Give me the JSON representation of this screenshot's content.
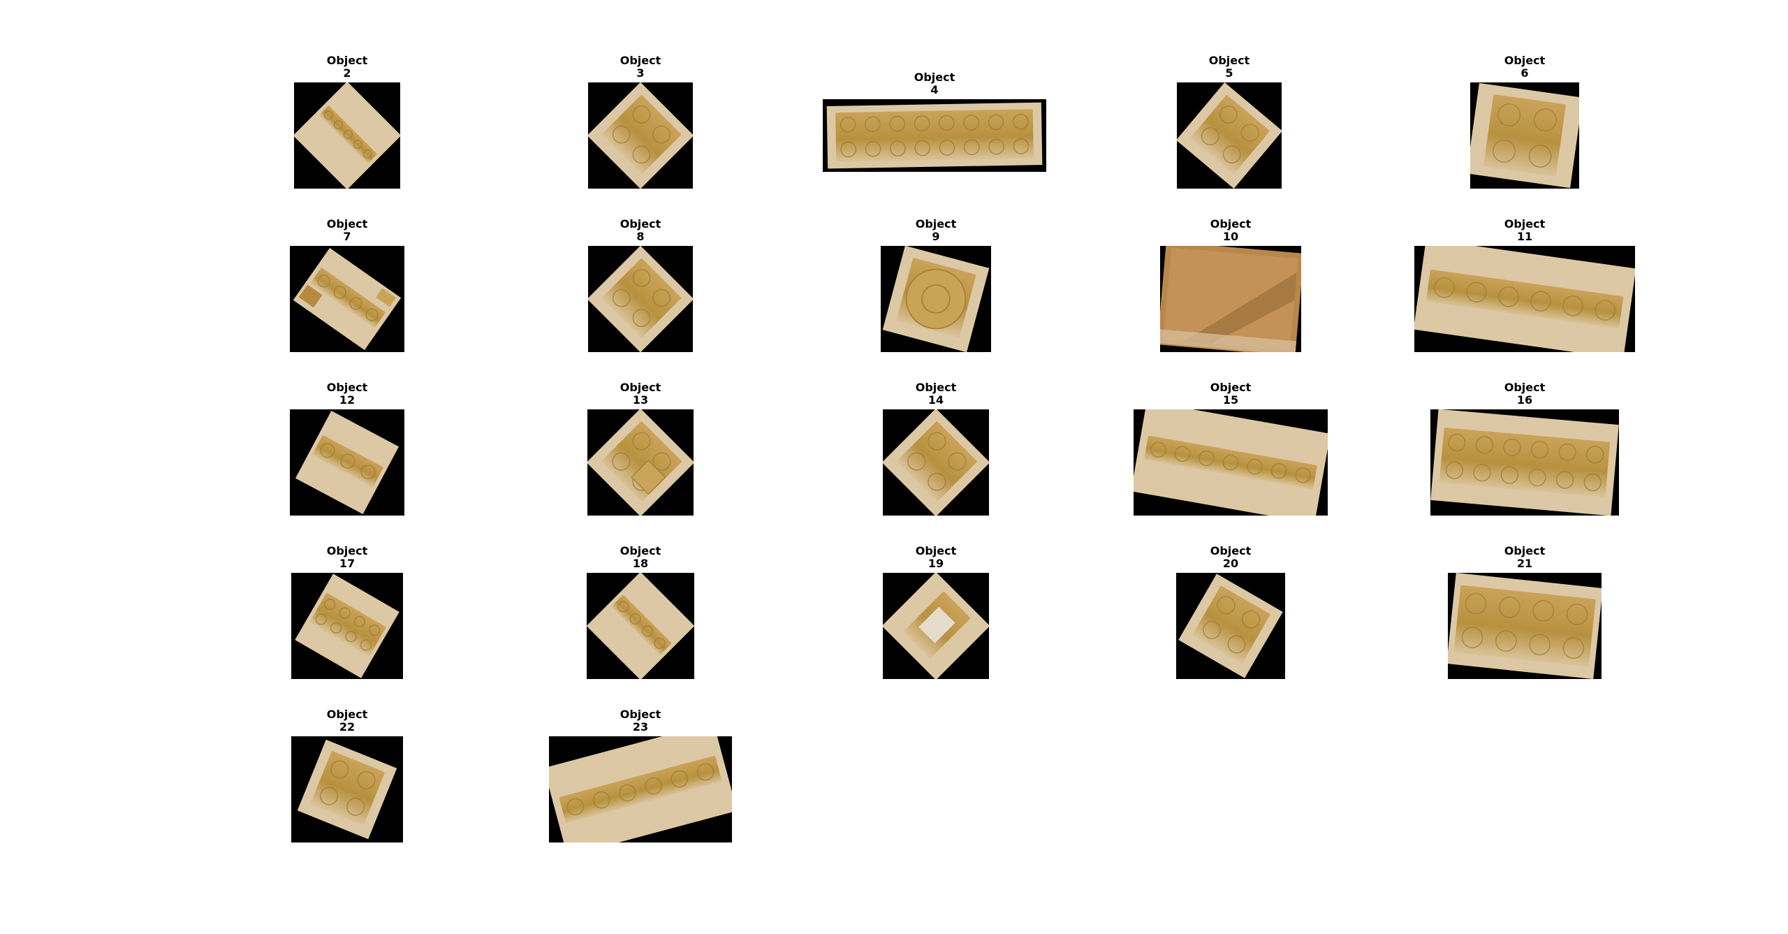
{
  "objects": [
    {
      "label": "Object",
      "number": "2"
    },
    {
      "label": "Object",
      "number": "3"
    },
    {
      "label": "Object",
      "number": "4"
    },
    {
      "label": "Object",
      "number": "5"
    },
    {
      "label": "Object",
      "number": "6"
    },
    {
      "label": "Object",
      "number": "7"
    },
    {
      "label": "Object",
      "number": "8"
    },
    {
      "label": "Object",
      "number": "9"
    },
    {
      "label": "Object",
      "number": "10"
    },
    {
      "label": "Object",
      "number": "11"
    },
    {
      "label": "Object",
      "number": "12"
    },
    {
      "label": "Object",
      "number": "13"
    },
    {
      "label": "Object",
      "number": "14"
    },
    {
      "label": "Object",
      "number": "15"
    },
    {
      "label": "Object",
      "number": "16"
    },
    {
      "label": "Object",
      "number": "17"
    },
    {
      "label": "Object",
      "number": "18"
    },
    {
      "label": "Object",
      "number": "19"
    },
    {
      "label": "Object",
      "number": "20"
    },
    {
      "label": "Object",
      "number": "21"
    },
    {
      "label": "Object",
      "number": "22"
    },
    {
      "label": "Object",
      "number": "23"
    }
  ]
}
